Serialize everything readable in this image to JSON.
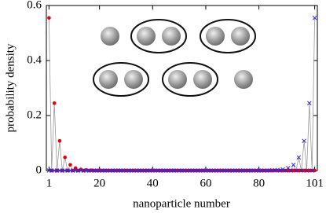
{
  "chart_data": {
    "type": "line-scatter",
    "x_label": "nanoparticle number",
    "y_label": "probability density",
    "x": [
      1,
      2,
      3,
      4,
      5,
      6,
      7,
      8,
      9,
      10,
      11,
      12,
      13,
      14,
      15,
      16,
      17,
      18,
      19,
      20,
      21,
      22,
      23,
      24,
      25,
      26,
      27,
      28,
      29,
      30,
      31,
      32,
      33,
      34,
      35,
      36,
      37,
      38,
      39,
      40,
      41,
      42,
      43,
      44,
      45,
      46,
      47,
      48,
      49,
      50,
      51,
      52,
      53,
      54,
      55,
      56,
      57,
      58,
      59,
      60,
      61,
      62,
      63,
      64,
      65,
      66,
      67,
      68,
      69,
      70,
      71,
      72,
      73,
      74,
      75,
      76,
      77,
      78,
      79,
      80,
      81,
      82,
      83,
      84,
      85,
      86,
      87,
      88,
      89,
      90,
      91,
      92,
      93,
      94,
      95,
      96,
      97,
      98,
      99,
      100,
      101
    ],
    "series": [
      {
        "color": "#e8000b",
        "marker": "circle",
        "values": [
          0.555,
          0,
          0.245,
          0,
          0.108,
          0,
          0.048,
          0,
          0.021,
          0,
          0.009,
          0,
          0.004,
          0,
          0.002,
          0,
          0.001,
          0,
          0,
          0,
          0,
          0,
          0,
          0,
          0,
          0,
          0,
          0,
          0,
          0,
          0,
          0,
          0,
          0,
          0,
          0,
          0,
          0,
          0,
          0,
          0,
          0,
          0,
          0,
          0,
          0,
          0,
          0,
          0,
          0,
          0,
          0,
          0,
          0,
          0,
          0,
          0,
          0,
          0,
          0,
          0,
          0,
          0,
          0,
          0,
          0,
          0,
          0,
          0,
          0,
          0,
          0,
          0,
          0,
          0,
          0,
          0,
          0,
          0,
          0,
          0,
          0,
          0,
          0,
          0,
          0,
          0,
          0,
          0,
          0,
          0,
          0,
          0,
          0,
          0,
          0,
          0,
          0,
          0,
          0,
          0
        ]
      },
      {
        "color": "#2a2ae0",
        "marker": "x",
        "values": [
          0,
          0,
          0,
          0,
          0,
          0,
          0,
          0,
          0,
          0,
          0,
          0,
          0,
          0,
          0,
          0,
          0,
          0,
          0,
          0,
          0,
          0,
          0,
          0,
          0,
          0,
          0,
          0,
          0,
          0,
          0,
          0,
          0,
          0,
          0,
          0,
          0,
          0,
          0,
          0,
          0,
          0,
          0,
          0,
          0,
          0,
          0,
          0,
          0,
          0,
          0,
          0,
          0,
          0,
          0,
          0,
          0,
          0,
          0,
          0,
          0,
          0,
          0,
          0,
          0,
          0,
          0,
          0,
          0,
          0,
          0,
          0,
          0,
          0,
          0,
          0,
          0,
          0,
          0,
          0,
          0,
          0,
          0,
          0,
          0.001,
          0,
          0.002,
          0,
          0.004,
          0,
          0.009,
          0,
          0.021,
          0,
          0.048,
          0,
          0.108,
          0,
          0.245,
          0,
          0.555
        ]
      }
    ],
    "line_color": "#999999",
    "xlim": [
      0,
      102
    ],
    "xticks": [
      1,
      20,
      40,
      60,
      80,
      101
    ],
    "ylim": [
      0,
      0.6
    ],
    "yticks": [
      0,
      0.2,
      0.4,
      0.6
    ]
  }
}
